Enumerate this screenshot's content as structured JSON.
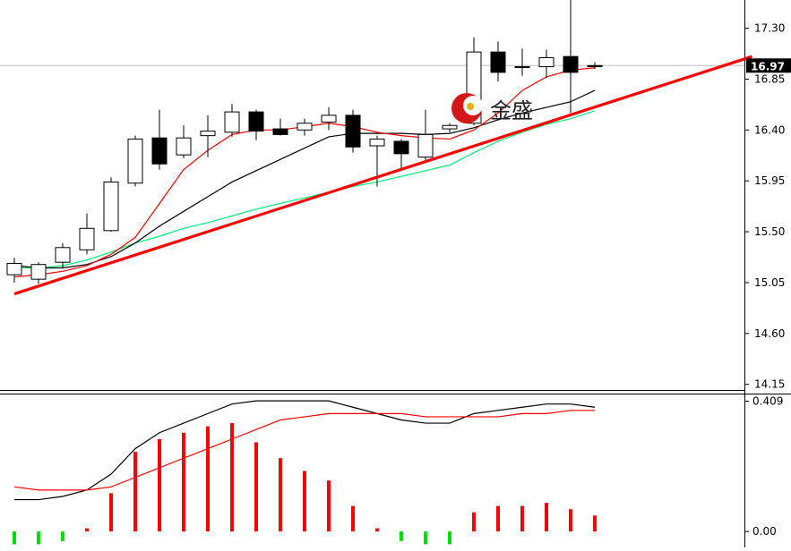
{
  "chart_data": {
    "type": "candlestick",
    "price_axis": {
      "ticks": [
        "17.30",
        "16.85",
        "16.40",
        "15.95",
        "15.50",
        "15.05",
        "14.60",
        "14.15"
      ],
      "tick_values": [
        17.3,
        16.85,
        16.4,
        15.95,
        15.5,
        15.05,
        14.6,
        14.15
      ],
      "ylim": [
        14.1,
        17.55
      ],
      "current_price": "16.97"
    },
    "candles": [
      {
        "o": 15.12,
        "h": 15.27,
        "l": 15.05,
        "c": 15.22
      },
      {
        "o": 15.08,
        "h": 15.23,
        "l": 15.04,
        "c": 15.21
      },
      {
        "o": 15.23,
        "h": 15.4,
        "l": 15.18,
        "c": 15.36
      },
      {
        "o": 15.34,
        "h": 15.66,
        "l": 15.3,
        "c": 15.53
      },
      {
        "o": 15.51,
        "h": 15.98,
        "l": 15.5,
        "c": 15.94
      },
      {
        "o": 15.93,
        "h": 16.35,
        "l": 15.9,
        "c": 16.32
      },
      {
        "o": 16.33,
        "h": 16.58,
        "l": 16.05,
        "c": 16.1
      },
      {
        "o": 16.18,
        "h": 16.44,
        "l": 16.15,
        "c": 16.33
      },
      {
        "o": 16.35,
        "h": 16.53,
        "l": 16.16,
        "c": 16.39
      },
      {
        "o": 16.38,
        "h": 16.63,
        "l": 16.34,
        "c": 16.56
      },
      {
        "o": 16.56,
        "h": 16.58,
        "l": 16.31,
        "c": 16.39
      },
      {
        "o": 16.41,
        "h": 16.5,
        "l": 16.35,
        "c": 16.36
      },
      {
        "o": 16.4,
        "h": 16.5,
        "l": 16.35,
        "c": 16.46
      },
      {
        "o": 16.47,
        "h": 16.6,
        "l": 16.4,
        "c": 16.53
      },
      {
        "o": 16.53,
        "h": 16.58,
        "l": 16.2,
        "c": 16.25
      },
      {
        "o": 16.26,
        "h": 16.35,
        "l": 15.9,
        "c": 16.32
      },
      {
        "o": 16.3,
        "h": 16.32,
        "l": 16.04,
        "c": 16.19
      },
      {
        "o": 16.16,
        "h": 16.58,
        "l": 16.13,
        "c": 16.36
      },
      {
        "o": 16.41,
        "h": 16.46,
        "l": 16.38,
        "c": 16.44
      },
      {
        "o": 16.46,
        "h": 17.22,
        "l": 16.44,
        "c": 17.09
      },
      {
        "o": 17.09,
        "h": 17.18,
        "l": 16.83,
        "c": 16.91
      },
      {
        "o": 16.96,
        "h": 17.12,
        "l": 16.88,
        "c": 16.96
      },
      {
        "o": 16.96,
        "h": 17.11,
        "l": 16.86,
        "c": 17.04
      },
      {
        "o": 17.05,
        "h": 17.55,
        "l": 16.55,
        "c": 16.91
      },
      {
        "o": 16.97,
        "h": 17.0,
        "l": 16.94,
        "c": 16.96
      }
    ],
    "ma_red": [
      15.1,
      15.12,
      15.15,
      15.2,
      15.3,
      15.45,
      15.75,
      16.05,
      16.22,
      16.36,
      16.4,
      16.4,
      16.43,
      16.46,
      16.43,
      16.38,
      16.35,
      16.33,
      16.32,
      16.4,
      16.55,
      16.75,
      16.87,
      16.93,
      16.95
    ],
    "ma_black": [
      15.2,
      15.18,
      15.18,
      15.21,
      15.28,
      15.4,
      15.55,
      15.68,
      15.81,
      15.94,
      16.04,
      16.14,
      16.24,
      16.34,
      16.37,
      16.37,
      16.37,
      16.36,
      16.37,
      16.42,
      16.49,
      16.55,
      16.6,
      16.65,
      16.75
    ],
    "ma_green": [
      15.18,
      15.18,
      15.2,
      15.25,
      15.32,
      15.4,
      15.46,
      15.53,
      15.58,
      15.64,
      15.7,
      15.75,
      15.8,
      15.85,
      15.9,
      15.94,
      15.99,
      16.04,
      16.09,
      16.2,
      16.3,
      16.38,
      16.45,
      16.5,
      16.57
    ],
    "trendline": {
      "x": [
        0,
        30.5
      ],
      "y": [
        14.95,
        17.05
      ]
    },
    "macd": {
      "axis_ticks": [
        "0.409",
        "0.00"
      ],
      "axis_values": [
        0.409,
        0.0
      ],
      "ylim": [
        -0.05,
        0.43
      ],
      "histogram": [
        -0.04,
        -0.04,
        -0.03,
        0.01,
        0.12,
        0.25,
        0.29,
        0.31,
        0.33,
        0.34,
        0.28,
        0.23,
        0.19,
        0.16,
        0.08,
        0.01,
        -0.03,
        -0.04,
        -0.04,
        0.06,
        0.08,
        0.08,
        0.09,
        0.07,
        0.05
      ],
      "macd_line": [
        0.1,
        0.1,
        0.11,
        0.13,
        0.18,
        0.26,
        0.31,
        0.34,
        0.37,
        0.4,
        0.41,
        0.41,
        0.41,
        0.41,
        0.39,
        0.37,
        0.35,
        0.34,
        0.34,
        0.37,
        0.38,
        0.39,
        0.4,
        0.4,
        0.39
      ],
      "signal_line": [
        0.14,
        0.13,
        0.13,
        0.13,
        0.14,
        0.17,
        0.2,
        0.23,
        0.26,
        0.29,
        0.32,
        0.35,
        0.36,
        0.37,
        0.37,
        0.37,
        0.37,
        0.36,
        0.36,
        0.36,
        0.36,
        0.37,
        0.37,
        0.38,
        0.38
      ]
    },
    "colors": {
      "ma_red": "#ff0000",
      "ma_black": "#000000",
      "ma_green": "#00ee77",
      "trendline": "#ff0000",
      "hist_up": "#ff0000",
      "hist_down": "#00dd00",
      "macd_line": "#000000",
      "signal_line": "#ff0000"
    },
    "watermark_text": "金盛"
  }
}
